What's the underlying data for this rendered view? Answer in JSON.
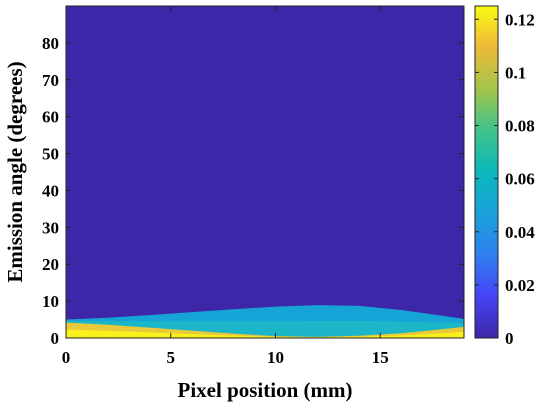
{
  "chart_data": {
    "type": "heatmap",
    "xlabel": "Pixel position (mm)",
    "ylabel": "Emission angle (degrees)",
    "xlim": [
      0,
      19
    ],
    "ylim": [
      0,
      90
    ],
    "x_ticks": [
      "0",
      "5",
      "10",
      "15"
    ],
    "x_tick_values": [
      0,
      5,
      10,
      15
    ],
    "y_ticks": [
      "0",
      "10",
      "20",
      "30",
      "40",
      "50",
      "60",
      "70",
      "80"
    ],
    "y_tick_values": [
      0,
      10,
      20,
      30,
      40,
      50,
      60,
      70,
      80
    ],
    "colorbar": {
      "range": [
        0,
        0.125
      ],
      "ticks": [
        "0",
        "0.02",
        "0.04",
        "0.06",
        "0.08",
        "0.1",
        "0.12"
      ],
      "tick_values": [
        0,
        0.02,
        0.04,
        0.06,
        0.08,
        0.1,
        0.12
      ],
      "colormap": "parula"
    },
    "background_value": 0.0,
    "field": {
      "x": [
        0,
        2,
        4,
        6,
        8,
        10,
        12,
        14,
        16,
        18,
        19
      ],
      "upper_edge_deg": [
        5.0,
        5.5,
        6.2,
        7.0,
        7.8,
        8.5,
        8.9,
        8.7,
        7.6,
        6.0,
        5.2
      ],
      "outer_band_value": 0.055,
      "bright_band_top_deg": [
        4.2,
        3.6,
        2.8,
        2.0,
        1.2,
        0.5,
        0.3,
        0.6,
        1.3,
        2.4,
        3.0
      ],
      "bright_band_value": 0.12
    }
  }
}
